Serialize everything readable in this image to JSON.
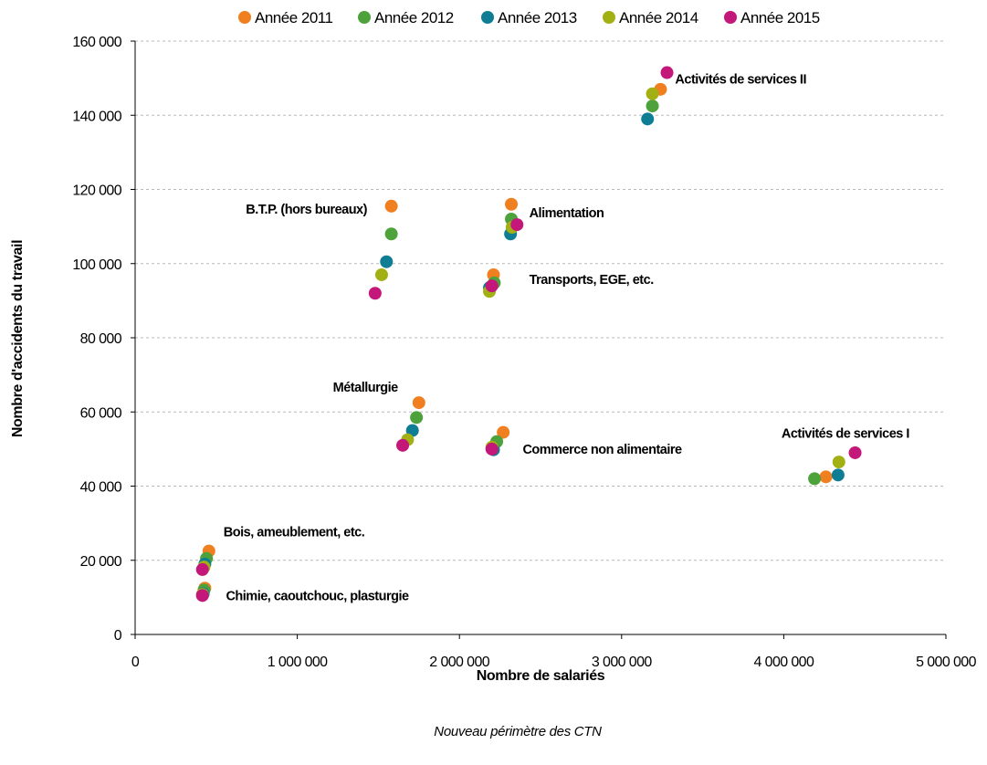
{
  "chart_data": {
    "type": "scatter",
    "xlabel": "Nombre de salariés",
    "ylabel": "Nombre d'accidents du travail",
    "footnote": "Nouveau périmètre des CTN",
    "xlim": [
      0,
      5000000
    ],
    "ylim": [
      0,
      160000
    ],
    "x_ticks": [
      {
        "value": 0,
        "label": "0"
      },
      {
        "value": 1000000,
        "label": "1 000 000"
      },
      {
        "value": 2000000,
        "label": "2 000 000"
      },
      {
        "value": 3000000,
        "label": "3 000 000"
      },
      {
        "value": 4000000,
        "label": "4 000 000"
      },
      {
        "value": 5000000,
        "label": "5 000 000"
      }
    ],
    "y_ticks": [
      {
        "value": 0,
        "label": "0"
      },
      {
        "value": 20000,
        "label": "20 000"
      },
      {
        "value": 40000,
        "label": "40 000"
      },
      {
        "value": 60000,
        "label": "60 000"
      },
      {
        "value": 80000,
        "label": "80 000"
      },
      {
        "value": 100000,
        "label": "100 000"
      },
      {
        "value": 120000,
        "label": "120 000"
      },
      {
        "value": 140000,
        "label": "140 000"
      },
      {
        "value": 160000,
        "label": "160 000"
      }
    ],
    "grid": "horizontal",
    "legend_position": "top",
    "series": [
      {
        "name": "Année 2011",
        "color": "#F07F1F",
        "points": [
          [
            3240000,
            147000
          ],
          [
            1580000,
            115500
          ],
          [
            2320000,
            116000
          ],
          [
            2210000,
            97000
          ],
          [
            1750000,
            62500
          ],
          [
            2270000,
            54500
          ],
          [
            4260000,
            42500
          ],
          [
            455000,
            22500
          ],
          [
            430000,
            12500
          ]
        ]
      },
      {
        "name": "Année 2012",
        "color": "#4EA23C",
        "points": [
          [
            3190000,
            142500
          ],
          [
            1580000,
            108000
          ],
          [
            2320000,
            112000
          ],
          [
            2215000,
            94800
          ],
          [
            1735000,
            58500
          ],
          [
            2230000,
            52000
          ],
          [
            4190000,
            42000
          ],
          [
            440000,
            20500
          ],
          [
            425000,
            12000
          ]
        ]
      },
      {
        "name": "Année 2013",
        "color": "#0F7D93",
        "points": [
          [
            3160000,
            139000
          ],
          [
            1550000,
            100500
          ],
          [
            2315000,
            108000
          ],
          [
            2185000,
            93500
          ],
          [
            1710000,
            55000
          ],
          [
            2210000,
            49800
          ],
          [
            4335000,
            43000
          ],
          [
            430000,
            19000
          ],
          [
            420000,
            11000
          ]
        ]
      },
      {
        "name": "Année 2014",
        "color": "#A3B014",
        "points": [
          [
            3190000,
            145800
          ],
          [
            1520000,
            97000
          ],
          [
            2325000,
            109800
          ],
          [
            2185000,
            92500
          ],
          [
            1680000,
            52500
          ],
          [
            2200000,
            50500
          ],
          [
            4340000,
            46500
          ],
          [
            425000,
            18200
          ],
          [
            415000,
            10800
          ]
        ]
      },
      {
        "name": "Année 2015",
        "color": "#C4177A",
        "points": [
          [
            3280000,
            151500
          ],
          [
            1480000,
            92000
          ],
          [
            2355000,
            110500
          ],
          [
            2200000,
            94000
          ],
          [
            1650000,
            51000
          ],
          [
            2200000,
            50000
          ],
          [
            4440000,
            49000
          ],
          [
            415000,
            17500
          ],
          [
            415000,
            10500
          ]
        ]
      }
    ],
    "annotations": [
      {
        "text": "Activités de services II",
        "x": 3330000,
        "y": 148500,
        "anchor": "start"
      },
      {
        "text": "B.T.P. (hors bureaux)",
        "x": 1430000,
        "y": 113500,
        "anchor": "end"
      },
      {
        "text": "Alimentation",
        "x": 2430000,
        "y": 112500,
        "anchor": "start"
      },
      {
        "text": "Transports, EGE, etc.",
        "x": 2430000,
        "y": 94500,
        "anchor": "start"
      },
      {
        "text": "Métallurgie",
        "x": 1620000,
        "y": 65500,
        "anchor": "end"
      },
      {
        "text": "Commerce non alimentaire",
        "x": 2390000,
        "y": 48800,
        "anchor": "start"
      },
      {
        "text": "Activités de services I",
        "x": 4380000,
        "y": 53000,
        "anchor": "middle"
      },
      {
        "text": "Bois, ameublement, etc.",
        "x": 545000,
        "y": 26500,
        "anchor": "start"
      },
      {
        "text": "Chimie, caoutchouc, plasturgie",
        "x": 560000,
        "y": 9200,
        "anchor": "start"
      }
    ]
  }
}
